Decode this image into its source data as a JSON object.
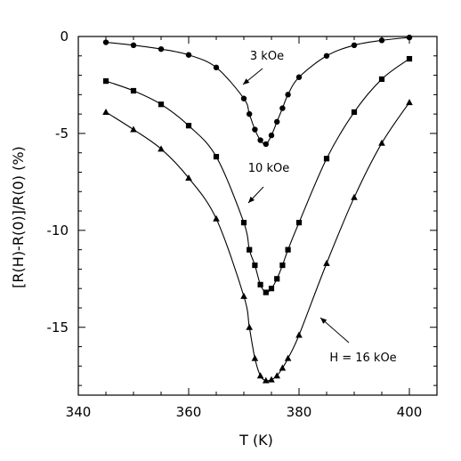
{
  "chart_data": {
    "type": "line",
    "xlabel": "T (K)",
    "ylabel": "[R(H)-R(0)]/R(0) (%)",
    "xlim": [
      340,
      405
    ],
    "ylim": [
      -18.5,
      0
    ],
    "x_ticks": [
      340,
      360,
      380,
      400
    ],
    "x_tick_labels": [
      "340",
      "360",
      "380",
      "400"
    ],
    "y_ticks": [
      0,
      -5,
      -10,
      -15
    ],
    "y_tick_labels": [
      "0",
      "-5",
      "-10",
      "-15"
    ],
    "grid": false,
    "legend": "none",
    "annotations": [
      {
        "text": "3 kOe",
        "series": 0
      },
      {
        "text": "10 kOe",
        "series": 1
      },
      {
        "text": "H = 16 kOe",
        "series": 2
      }
    ],
    "series": [
      {
        "marker": "circle",
        "x": [
          345,
          350,
          355,
          360,
          365,
          370,
          371,
          372,
          373,
          374,
          375,
          376,
          377,
          378,
          380,
          385,
          390,
          395,
          400
        ],
        "y": [
          -0.3,
          -0.45,
          -0.65,
          -0.95,
          -1.6,
          -3.2,
          -4.0,
          -4.8,
          -5.35,
          -5.55,
          -5.1,
          -4.4,
          -3.7,
          -3.0,
          -2.1,
          -1.0,
          -0.45,
          -0.2,
          -0.05
        ]
      },
      {
        "marker": "square",
        "x": [
          345,
          350,
          355,
          360,
          365,
          370,
          371,
          372,
          373,
          374,
          375,
          376,
          377,
          378,
          380,
          385,
          390,
          395,
          400
        ],
        "y": [
          -2.3,
          -2.8,
          -3.5,
          -4.6,
          -6.2,
          -9.6,
          -11.0,
          -11.8,
          -12.8,
          -13.2,
          -13.0,
          -12.5,
          -11.8,
          -11.0,
          -9.6,
          -6.3,
          -3.9,
          -2.2,
          -1.15
        ]
      },
      {
        "marker": "triangle",
        "x": [
          345,
          350,
          355,
          360,
          365,
          370,
          371,
          372,
          373,
          374,
          375,
          376,
          377,
          378,
          380,
          385,
          390,
          395,
          400
        ],
        "y": [
          -3.9,
          -4.8,
          -5.8,
          -7.3,
          -9.4,
          -13.4,
          -15.0,
          -16.6,
          -17.5,
          -17.75,
          -17.7,
          -17.5,
          -17.1,
          -16.6,
          -15.4,
          -11.7,
          -8.3,
          -5.5,
          -3.4
        ]
      }
    ]
  }
}
